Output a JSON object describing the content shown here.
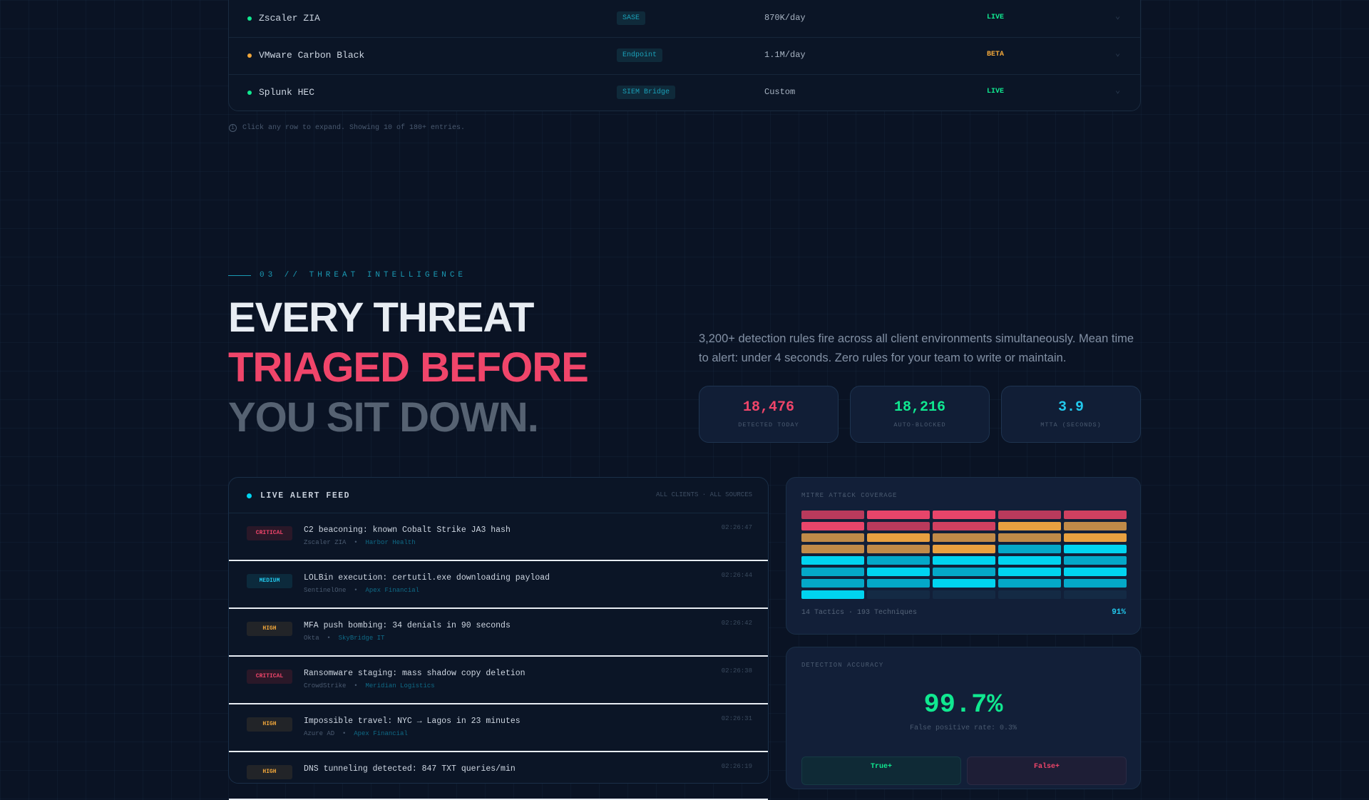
{
  "integrations": {
    "rows": [
      {
        "name": "Zscaler ZIA",
        "category": "SASE",
        "volume": "870K/day",
        "status": "LIVE",
        "status_color": "#10e890"
      },
      {
        "name": "VMware Carbon Black",
        "category": "Endpoint",
        "volume": "1.1M/day",
        "status": "BETA",
        "status_color": "#f0a63a"
      },
      {
        "name": "Splunk HEC",
        "category": "SIEM Bridge",
        "volume": "Custom",
        "status": "LIVE",
        "status_color": "#10e890"
      }
    ],
    "footnote": "Click any row to expand. Showing 10 of 180+ entries."
  },
  "section": {
    "eyebrow": "03 // THREAT INTELLIGENCE",
    "headline": [
      "EVERY THREAT",
      "TRIAGED BEFORE",
      "YOU SIT DOWN."
    ],
    "description": "3,200+ detection rules fire across all client environments simultaneously. Mean time to alert: under 4 seconds. Zero rules for your team to write or maintain."
  },
  "stats": [
    {
      "value": "18,476",
      "label": "DETECTED TODAY",
      "color": "#f0456a"
    },
    {
      "value": "18,216",
      "label": "AUTO-BLOCKED",
      "color": "#10e890"
    },
    {
      "value": "3.9",
      "label": "MTTA (SECONDS)",
      "color": "#22c8ec"
    }
  ],
  "feed": {
    "title": "LIVE ALERT FEED",
    "filter": "ALL CLIENTS · ALL SOURCES",
    "alerts": [
      {
        "severity": "CRITICAL",
        "title": "C2 beaconing: known Cobalt Strike JA3 hash",
        "source": "Zscaler ZIA",
        "client": "Harbor Health",
        "time": "02:26:47"
      },
      {
        "severity": "MEDIUM",
        "title": "LOLBin execution: certutil.exe downloading payload",
        "source": "SentinelOne",
        "client": "Apex Financial",
        "time": "02:26:44"
      },
      {
        "severity": "HIGH",
        "title": "MFA push bombing: 34 denials in 90 seconds",
        "source": "Okta",
        "client": "SkyBridge IT",
        "time": "02:26:42"
      },
      {
        "severity": "CRITICAL",
        "title": "Ransomware staging: mass shadow copy deletion",
        "source": "CrowdStrike",
        "client": "Meridian Logistics",
        "time": "02:26:38"
      },
      {
        "severity": "HIGH",
        "title": "Impossible travel: NYC → Lagos in 23 minutes",
        "source": "Azure AD",
        "client": "Apex Financial",
        "time": "02:26:31"
      },
      {
        "severity": "HIGH",
        "title": "DNS tunneling detected: 847 TXT queries/min",
        "source": "",
        "client": "",
        "time": "02:26:19"
      }
    ]
  },
  "mitre": {
    "title": "MITRE ATT&CK COVERAGE",
    "summary": "14 Tactics · 193 Techniques",
    "coverage": "91%",
    "cells": [
      "r",
      "R",
      "R",
      "r",
      "m",
      "R",
      "r",
      "m",
      "o",
      "O",
      "O",
      "o",
      "O",
      "O",
      "o",
      "O",
      "O",
      "o",
      "c",
      "C",
      "C",
      "c",
      "C",
      "C",
      "c",
      "c",
      "C",
      "c",
      "C",
      "C",
      "c",
      "c",
      "C",
      "c",
      "c",
      "C",
      "e",
      "e",
      "e",
      "e"
    ],
    "colors": {
      "r": "#b93a5c",
      "m": "#d04060",
      "R": "#e8456a",
      "o": "#e8a040",
      "O": "#c08a48",
      "c": "#04a8c8",
      "C": "#00d4f0",
      "e": "#142a44"
    }
  },
  "accuracy": {
    "title": "DETECTION ACCURACY",
    "value": "99.7%",
    "false_positive": "False positive rate: 0.3%",
    "true_label": "True+",
    "false_label": "False+"
  },
  "severity_colors": {
    "CRITICAL": {
      "fg": "#f0456a",
      "bg": "#2a1828"
    },
    "MEDIUM": {
      "fg": "#22c8ec",
      "bg": "#0c2a3c"
    },
    "HIGH": {
      "fg": "#f0a63a",
      "bg": "#222428"
    }
  }
}
